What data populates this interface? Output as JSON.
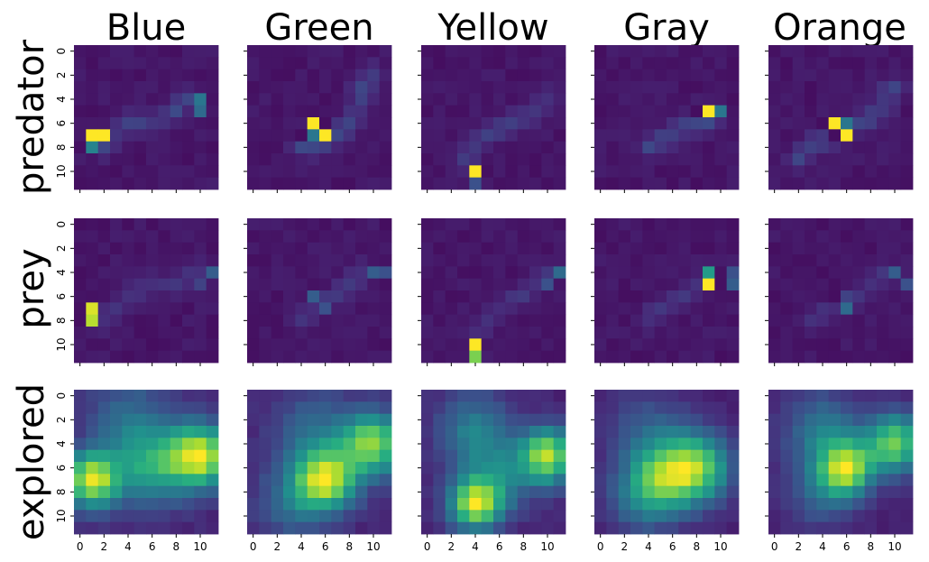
{
  "chart_data": {
    "type": "heatmap",
    "colormap": "viridis",
    "grid_size": [
      12,
      12
    ],
    "columns": [
      "Blue",
      "Green",
      "Yellow",
      "Gray",
      "Orange"
    ],
    "rows": [
      "predator",
      "prey",
      "explored"
    ],
    "x_ticks": [
      0,
      2,
      4,
      6,
      8,
      10
    ],
    "y_ticks": [
      0,
      2,
      4,
      6,
      8,
      10
    ],
    "panels": [
      {
        "row": "predator",
        "column": "Blue",
        "hotspots": [
          [
            7,
            1,
            1.0
          ],
          [
            7,
            2,
            1.0
          ],
          [
            8,
            1,
            0.45
          ],
          [
            4,
            10,
            0.4
          ],
          [
            5,
            10,
            0.35
          ]
        ],
        "path": [
          [
            4,
            9
          ],
          [
            5,
            8
          ],
          [
            6,
            6
          ],
          [
            6,
            4
          ],
          [
            7,
            3
          ],
          [
            8,
            2
          ]
        ],
        "path_level": 0.15,
        "base": 0.04
      },
      {
        "row": "predator",
        "column": "Green",
        "hotspots": [
          [
            6,
            5,
            1.0
          ],
          [
            7,
            6,
            1.0
          ],
          [
            7,
            5,
            0.4
          ],
          [
            6,
            6,
            0.04
          ],
          [
            7,
            4,
            0.04
          ]
        ],
        "path": [
          [
            2,
            10
          ],
          [
            3,
            9
          ],
          [
            4,
            9
          ],
          [
            6,
            8
          ],
          [
            7,
            7
          ],
          [
            8,
            5
          ],
          [
            8,
            4
          ]
        ],
        "path_level": 0.15,
        "base": 0.04
      },
      {
        "row": "predator",
        "column": "Yellow",
        "hotspots": [
          [
            10,
            4,
            1.0
          ],
          [
            11,
            4,
            0.25
          ]
        ],
        "path": [
          [
            4,
            10
          ],
          [
            5,
            9
          ],
          [
            6,
            7
          ],
          [
            7,
            5
          ],
          [
            8,
            4
          ],
          [
            9,
            3
          ]
        ],
        "path_level": 0.13,
        "base": 0.04
      },
      {
        "row": "predator",
        "column": "Gray",
        "hotspots": [
          [
            5,
            9,
            1.0
          ],
          [
            5,
            10,
            0.4
          ],
          [
            5,
            8,
            0.04
          ]
        ],
        "path": [
          [
            6,
            9
          ],
          [
            6,
            7
          ],
          [
            7,
            6
          ],
          [
            8,
            4
          ]
        ],
        "path_level": 0.16,
        "base": 0.04
      },
      {
        "row": "predator",
        "column": "Orange",
        "hotspots": [
          [
            6,
            5,
            1.0
          ],
          [
            7,
            6,
            1.0
          ],
          [
            6,
            6,
            0.4
          ],
          [
            7,
            5,
            0.04
          ],
          [
            6,
            4,
            0.04
          ]
        ],
        "path": [
          [
            3,
            10
          ],
          [
            4,
            9
          ],
          [
            5,
            9
          ],
          [
            6,
            7
          ],
          [
            7,
            5
          ],
          [
            8,
            3
          ],
          [
            9,
            2
          ]
        ],
        "path_level": 0.15,
        "base": 0.04
      },
      {
        "row": "prey",
        "column": "Blue",
        "hotspots": [
          [
            7,
            1,
            0.95
          ],
          [
            8,
            1,
            0.9
          ],
          [
            4,
            11,
            0.3
          ],
          [
            5,
            10,
            0.2
          ]
        ],
        "path": [
          [
            4,
            10
          ],
          [
            5,
            8
          ],
          [
            5,
            6
          ],
          [
            6,
            4
          ],
          [
            7,
            3
          ],
          [
            8,
            2
          ]
        ],
        "path_level": 0.12,
        "base": 0.04
      },
      {
        "row": "prey",
        "column": "Green",
        "hotspots": [
          [
            6,
            5,
            0.3
          ],
          [
            7,
            6,
            0.25
          ],
          [
            4,
            10,
            0.3
          ],
          [
            4,
            11,
            0.25
          ]
        ],
        "path": [
          [
            4,
            9
          ],
          [
            5,
            8
          ],
          [
            6,
            7
          ],
          [
            7,
            5
          ],
          [
            8,
            4
          ]
        ],
        "path_level": 0.12,
        "base": 0.04
      },
      {
        "row": "prey",
        "column": "Yellow",
        "hotspots": [
          [
            10,
            4,
            1.0
          ],
          [
            11,
            4,
            0.8
          ],
          [
            4,
            11,
            0.35
          ],
          [
            5,
            10,
            0.25
          ]
        ],
        "path": [
          [
            4,
            10
          ],
          [
            5,
            9
          ],
          [
            6,
            8
          ],
          [
            7,
            6
          ],
          [
            8,
            5
          ],
          [
            9,
            4
          ]
        ],
        "path_level": 0.11,
        "base": 0.04
      },
      {
        "row": "prey",
        "column": "Gray",
        "hotspots": [
          [
            4,
            9,
            0.55
          ],
          [
            5,
            9,
            1.0
          ],
          [
            5,
            11,
            0.3
          ],
          [
            4,
            11,
            0.25
          ]
        ],
        "path": [
          [
            5,
            8
          ],
          [
            6,
            7
          ],
          [
            7,
            5
          ],
          [
            8,
            4
          ]
        ],
        "path_level": 0.12,
        "base": 0.04
      },
      {
        "row": "prey",
        "column": "Orange",
        "hotspots": [
          [
            6,
            5,
            0.04
          ],
          [
            7,
            6,
            0.35
          ],
          [
            6,
            6,
            0.2
          ],
          [
            4,
            10,
            0.3
          ],
          [
            5,
            11,
            0.25
          ]
        ],
        "path": [
          [
            4,
            9
          ],
          [
            5,
            8
          ],
          [
            6,
            7
          ],
          [
            7,
            5
          ],
          [
            8,
            3
          ]
        ],
        "path_level": 0.11,
        "base": 0.04
      },
      {
        "row": "explored",
        "column": "Blue",
        "blobs": [
          [
            7,
            1,
            1.0,
            1.6
          ],
          [
            5,
            10,
            1.0,
            1.8
          ],
          [
            6,
            6,
            0.55,
            2.2
          ],
          [
            2,
            4,
            0.3,
            2.5
          ]
        ],
        "base": 0.1
      },
      {
        "row": "explored",
        "column": "Green",
        "blobs": [
          [
            7,
            6,
            1.0,
            1.8
          ],
          [
            4,
            10,
            0.9,
            1.8
          ],
          [
            3,
            5,
            0.3,
            2.5
          ],
          [
            9,
            3,
            0.3,
            2.0
          ]
        ],
        "base": 0.1
      },
      {
        "row": "explored",
        "column": "Yellow",
        "blobs": [
          [
            9,
            4,
            1.0,
            1.5
          ],
          [
            5,
            10,
            1.0,
            1.6
          ],
          [
            3,
            4,
            0.45,
            2.2
          ],
          [
            7,
            6,
            0.35,
            2.0
          ]
        ],
        "base": 0.1
      },
      {
        "row": "explored",
        "column": "Gray",
        "blobs": [
          [
            6,
            8,
            1.0,
            2.0
          ],
          [
            7,
            5,
            0.8,
            2.0
          ],
          [
            3,
            4,
            0.3,
            2.5
          ],
          [
            9,
            3,
            0.3,
            2.0
          ]
        ],
        "base": 0.1
      },
      {
        "row": "explored",
        "column": "Orange",
        "blobs": [
          [
            6,
            6,
            1.0,
            1.5
          ],
          [
            4,
            10,
            0.95,
            1.7
          ],
          [
            3,
            4,
            0.45,
            2.2
          ],
          [
            8,
            4,
            0.35,
            2.0
          ]
        ],
        "base": 0.1
      }
    ]
  }
}
